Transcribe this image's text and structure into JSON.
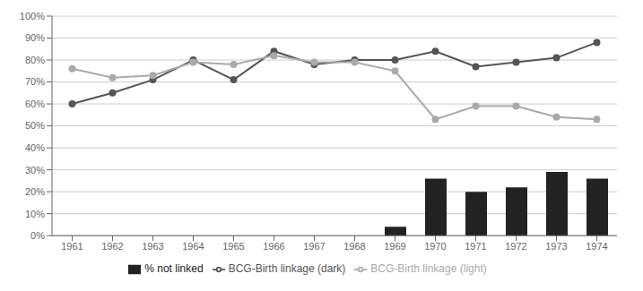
{
  "chart_data": {
    "type": "bar",
    "categories": [
      "1961",
      "1962",
      "1963",
      "1964",
      "1965",
      "1966",
      "1967",
      "1968",
      "1969",
      "1970",
      "1971",
      "1972",
      "1973",
      "1974"
    ],
    "series": [
      {
        "name": "% not linked",
        "type": "bar",
        "color": "#222222",
        "values": [
          0,
          0,
          0,
          0,
          0,
          0,
          0,
          0,
          4,
          26,
          20,
          22,
          29,
          26
        ]
      },
      {
        "name": "BCG-Birth linkage (dark)",
        "type": "line",
        "color": "#555555",
        "marker": "circle",
        "values": [
          60,
          65,
          71,
          80,
          71,
          84,
          78,
          80,
          80,
          84,
          77,
          79,
          81,
          88
        ]
      },
      {
        "name": "BCG-Birth linkage (light)",
        "type": "line",
        "color": "#aaaaaa",
        "marker": "circle",
        "values": [
          76,
          72,
          73,
          79,
          78,
          82,
          79,
          79,
          75,
          53,
          59,
          59,
          54,
          53
        ]
      }
    ],
    "ylim": [
      0,
      100
    ],
    "yticks": [
      {
        "value": 0,
        "label": "0%"
      },
      {
        "value": 10,
        "label": "10%"
      },
      {
        "value": 20,
        "label": "20%"
      },
      {
        "value": 30,
        "label": "30%"
      },
      {
        "value": 40,
        "label": "40%"
      },
      {
        "value": 50,
        "label": "50%"
      },
      {
        "value": 60,
        "label": "60%"
      },
      {
        "value": 70,
        "label": "70%"
      },
      {
        "value": 80,
        "label": "80%"
      },
      {
        "value": 90,
        "label": "90%"
      },
      {
        "value": 100,
        "label": "100%"
      }
    ],
    "grid": true,
    "legend": "bottom"
  }
}
